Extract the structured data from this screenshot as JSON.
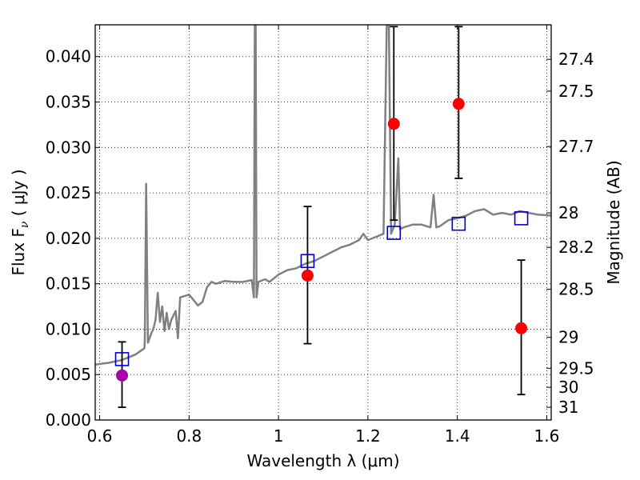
{
  "chart_data": {
    "type": "scatter",
    "xlabel": "Wavelength  λ (μm)",
    "ylabel": "Flux  F",
    "ylabel_sub": "ν",
    "ylabel_unit": " ( μJy )",
    "y2label": "Magnitude (AB)",
    "xlim": [
      0.59,
      1.61
    ],
    "ylim": [
      0.0,
      0.0435
    ],
    "grid": true,
    "x_ticks": [
      0.6,
      0.8,
      1.0,
      1.2,
      1.4,
      1.6
    ],
    "x_tick_labels": [
      "0.6",
      "0.8",
      "1",
      "1.2",
      "1.4",
      "1.6"
    ],
    "y_ticks": [
      0.0,
      0.005,
      0.01,
      0.015,
      0.02,
      0.025,
      0.03,
      0.035,
      0.04
    ],
    "y_tick_labels": [
      "0.000",
      "0.005",
      "0.010",
      "0.015",
      "0.020",
      "0.025",
      "0.030",
      "0.035",
      "0.040"
    ],
    "mag_ticks": [
      {
        "label": "27.4",
        "flux": 0.0397
      },
      {
        "label": "27.5",
        "flux": 0.0362
      },
      {
        "label": "27.7",
        "flux": 0.0301
      },
      {
        "label": "28",
        "flux": 0.0228
      },
      {
        "label": "28.2",
        "flux": 0.019
      },
      {
        "label": "28.5",
        "flux": 0.0144
      },
      {
        "label": "29",
        "flux": 0.0091
      },
      {
        "label": "29.5",
        "flux": 0.0057
      },
      {
        "label": "30",
        "flux": 0.0036
      },
      {
        "label": "31",
        "flux": 0.0014
      }
    ],
    "series": [
      {
        "kind": "template-spectrum",
        "color": "#808080",
        "points": [
          [
            0.59,
            0.0061
          ],
          [
            0.62,
            0.0063
          ],
          [
            0.65,
            0.0066
          ],
          [
            0.68,
            0.0072
          ],
          [
            0.7,
            0.0079
          ],
          [
            0.701,
            0.0088
          ],
          [
            0.704,
            0.026
          ],
          [
            0.708,
            0.0085
          ],
          [
            0.715,
            0.0095
          ],
          [
            0.72,
            0.01
          ],
          [
            0.725,
            0.011
          ],
          [
            0.73,
            0.014
          ],
          [
            0.735,
            0.0108
          ],
          [
            0.74,
            0.0125
          ],
          [
            0.745,
            0.0098
          ],
          [
            0.75,
            0.0118
          ],
          [
            0.755,
            0.01
          ],
          [
            0.76,
            0.011
          ],
          [
            0.77,
            0.012
          ],
          [
            0.775,
            0.009
          ],
          [
            0.78,
            0.0135
          ],
          [
            0.8,
            0.0138
          ],
          [
            0.82,
            0.0126
          ],
          [
            0.83,
            0.013
          ],
          [
            0.84,
            0.0146
          ],
          [
            0.85,
            0.0152
          ],
          [
            0.86,
            0.015
          ],
          [
            0.88,
            0.0153
          ],
          [
            0.9,
            0.0152
          ],
          [
            0.92,
            0.0152
          ],
          [
            0.94,
            0.0154
          ],
          [
            0.945,
            0.0135
          ],
          [
            0.947,
            0.0435
          ],
          [
            0.949,
            0.0435
          ],
          [
            0.951,
            0.0135
          ],
          [
            0.955,
            0.0152
          ],
          [
            0.97,
            0.0155
          ],
          [
            0.98,
            0.0152
          ],
          [
            1.0,
            0.016
          ],
          [
            1.02,
            0.0165
          ],
          [
            1.04,
            0.0167
          ],
          [
            1.06,
            0.0172
          ],
          [
            1.08,
            0.0175
          ],
          [
            1.1,
            0.018
          ],
          [
            1.12,
            0.0185
          ],
          [
            1.14,
            0.019
          ],
          [
            1.16,
            0.0193
          ],
          [
            1.18,
            0.0198
          ],
          [
            1.19,
            0.0205
          ],
          [
            1.2,
            0.0198
          ],
          [
            1.22,
            0.0202
          ],
          [
            1.235,
            0.0205
          ],
          [
            1.242,
            0.0435
          ],
          [
            1.247,
            0.0435
          ],
          [
            1.252,
            0.0205
          ],
          [
            1.26,
            0.0215
          ],
          [
            1.268,
            0.0288
          ],
          [
            1.272,
            0.021
          ],
          [
            1.28,
            0.0212
          ],
          [
            1.3,
            0.0215
          ],
          [
            1.32,
            0.0215
          ],
          [
            1.34,
            0.0212
          ],
          [
            1.347,
            0.0248
          ],
          [
            1.353,
            0.0212
          ],
          [
            1.36,
            0.0213
          ],
          [
            1.38,
            0.022
          ],
          [
            1.4,
            0.0222
          ],
          [
            1.42,
            0.0225
          ],
          [
            1.44,
            0.023
          ],
          [
            1.46,
            0.0232
          ],
          [
            1.48,
            0.0226
          ],
          [
            1.5,
            0.0228
          ],
          [
            1.52,
            0.0226
          ],
          [
            1.54,
            0.023
          ],
          [
            1.56,
            0.0228
          ],
          [
            1.58,
            0.0226
          ],
          [
            1.61,
            0.0225
          ]
        ]
      },
      {
        "kind": "model-photometry",
        "marker": "open-square",
        "color": "#0000cc",
        "points": [
          [
            0.65,
            0.0067
          ],
          [
            1.065,
            0.0175
          ],
          [
            1.258,
            0.0206
          ],
          [
            1.403,
            0.0216
          ],
          [
            1.543,
            0.0222
          ]
        ]
      },
      {
        "kind": "observed-photometry",
        "marker": "filled-circle",
        "points": [
          {
            "x": 0.65,
            "y": 0.0049,
            "lo": 0.0014,
            "hi": 0.0086,
            "color": "#aa00aa"
          },
          {
            "x": 1.065,
            "y": 0.0159,
            "lo": 0.0084,
            "hi": 0.0235,
            "color": "#ff0000"
          },
          {
            "x": 1.258,
            "y": 0.0326,
            "lo": 0.022,
            "hi": 0.0433,
            "color": "#ff0000"
          },
          {
            "x": 1.403,
            "y": 0.0348,
            "lo": 0.0266,
            "hi": 0.0433,
            "color": "#ff0000"
          },
          {
            "x": 1.543,
            "y": 0.0101,
            "lo": 0.0028,
            "hi": 0.0176,
            "color": "#ff0000"
          }
        ]
      }
    ]
  }
}
